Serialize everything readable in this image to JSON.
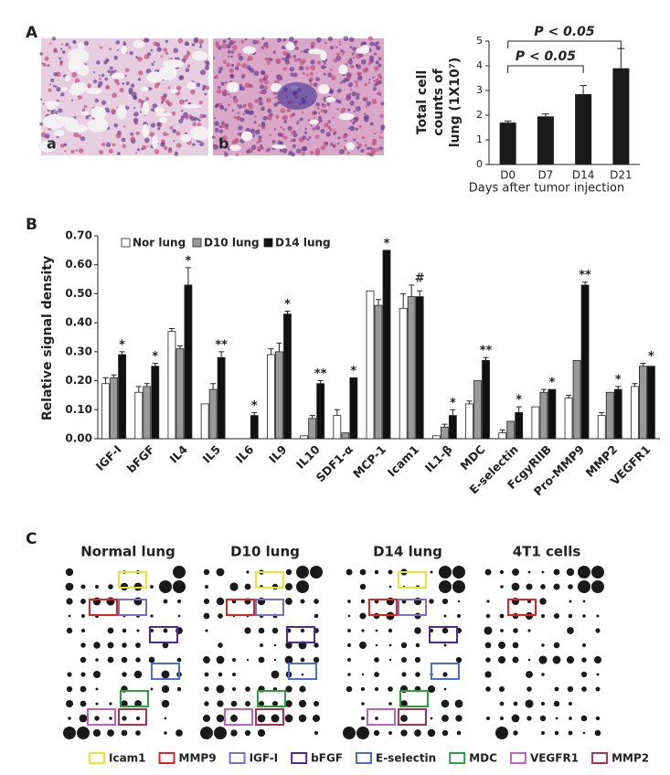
{
  "panel_labels": [
    "A",
    "B",
    "C"
  ],
  "micrographs": [
    {
      "label": "a"
    },
    {
      "label": "b"
    }
  ],
  "chart_data": [
    {
      "type": "bar",
      "ylabel": [
        "Total cell",
        "counts of",
        "lung (1X10⁷)"
      ],
      "xlabel": "Days after tumor injection",
      "categories": [
        "D0",
        "D7",
        "D14",
        "D21"
      ],
      "values": [
        1.7,
        1.95,
        2.85,
        3.9
      ],
      "errors": [
        0.06,
        0.1,
        0.35,
        0.8
      ],
      "color": "#1a1a1a",
      "ylim": [
        0,
        5
      ],
      "yticks": [
        0,
        1,
        2,
        3,
        4,
        5
      ],
      "annotations": [
        "P < 0.05",
        "P < 0.05"
      ]
    },
    {
      "type": "grouped-bar",
      "ylabel": "Relative signal density",
      "categories": [
        "IGF-I",
        "bFGF",
        "IL4",
        "IL5",
        "IL6",
        "IL9",
        "IL10",
        "SDF1-α",
        "MCP-1",
        "Icam1",
        "IL1-β",
        "MDC",
        "E-selectin",
        "FcgyRIIB",
        "Pro-MMP9",
        "MMP2",
        "VEGFR1"
      ],
      "series": [
        {
          "name": "Nor lung",
          "color": "#ffffff",
          "values": [
            0.19,
            0.16,
            0.37,
            0.12,
            0,
            0.29,
            0.01,
            0.08,
            0.51,
            0.45,
            0.01,
            0.12,
            0.02,
            0.11,
            0.14,
            0.08,
            0.18
          ],
          "errors": [
            0.02,
            0.02,
            0.01,
            null,
            null,
            0.02,
            null,
            0.02,
            null,
            0.05,
            null,
            0.01,
            0.01,
            null,
            0.01,
            0.01,
            0.01
          ]
        },
        {
          "name": "D10 lung",
          "color": "#999999",
          "values": [
            0.21,
            0.18,
            0.31,
            0.17,
            0,
            0.3,
            0.07,
            0.02,
            0.46,
            0.49,
            0.04,
            0.2,
            0.06,
            0.16,
            0.27,
            0.16,
            0.25
          ],
          "errors": [
            0.01,
            0.01,
            0.01,
            0.02,
            null,
            0.03,
            0.01,
            null,
            0.02,
            0.04,
            0.01,
            null,
            null,
            0.01,
            null,
            null,
            0.01
          ]
        },
        {
          "name": "D14 lung",
          "color": "#111111",
          "values": [
            0.29,
            0.25,
            0.53,
            0.28,
            0.08,
            0.43,
            0.19,
            0.21,
            0.65,
            0.49,
            0.08,
            0.27,
            0.09,
            0.17,
            0.53,
            0.17,
            0.25
          ],
          "errors": [
            0.01,
            0.01,
            0.06,
            0.02,
            0.01,
            0.01,
            0.01,
            null,
            null,
            0.02,
            0.02,
            0.01,
            0.02,
            null,
            0.01,
            0.01,
            null
          ]
        }
      ],
      "significance": [
        "*",
        "*",
        "*",
        "**",
        "*",
        "*",
        "**",
        "*",
        "*",
        "#",
        "*",
        "**",
        "*",
        "*",
        "**",
        "*",
        "*"
      ],
      "ylim": [
        0,
        0.7
      ],
      "yticks": [
        {
          "value": 0,
          "label": "0.00"
        },
        {
          "value": 0.1,
          "label": "0.10"
        },
        {
          "value": 0.2,
          "label": "0.20"
        },
        {
          "value": 0.3,
          "label": "0.30"
        },
        {
          "value": 0.4,
          "label": "0.40"
        },
        {
          "value": 0.5,
          "label": "0.50"
        },
        {
          "value": 0.6,
          "label": "0.60"
        },
        {
          "value": 0.7,
          "label": "0.70"
        }
      ]
    }
  ],
  "blot_arrays": {
    "titles": [
      "Normal lung",
      "D10 lung",
      "D14 lung",
      "4T1 cells"
    ],
    "legend": [
      {
        "label": "Icam1",
        "color": "#e6e62e"
      },
      {
        "label": "MMP9",
        "color": "#e02424"
      },
      {
        "label": "IGF-I",
        "color": "#7a6fc0"
      },
      {
        "label": "bFGF",
        "color": "#4b2a9a"
      },
      {
        "label": "E-selectin",
        "color": "#4a6fd0"
      },
      {
        "label": "MDC",
        "color": "#2aa040"
      },
      {
        "label": "VEGFR1",
        "color": "#c060c0"
      },
      {
        "label": "MMP2",
        "color": "#b0304e"
      }
    ]
  }
}
